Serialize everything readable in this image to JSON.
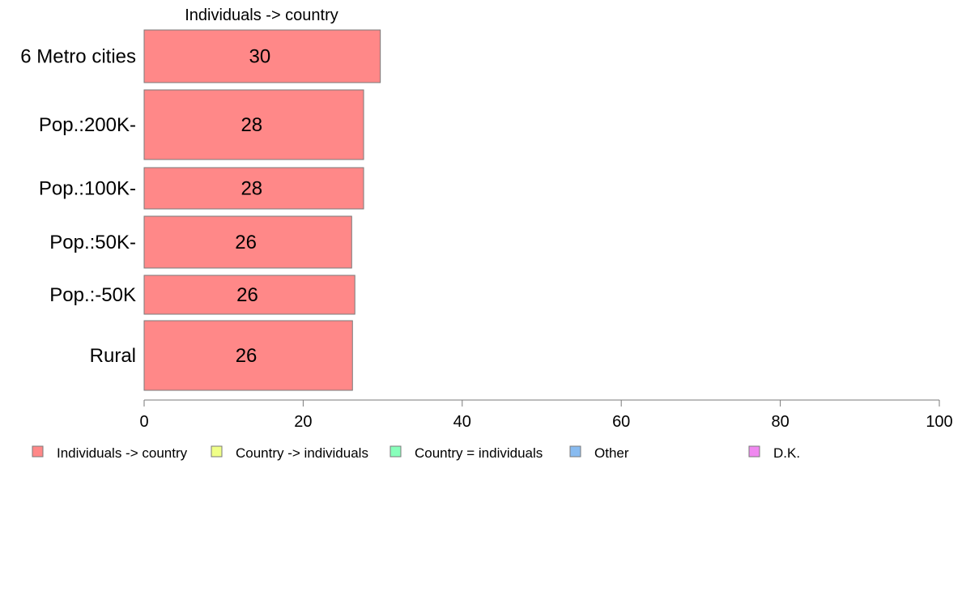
{
  "chart_data": {
    "type": "bar",
    "orientation": "horizontal",
    "title": "Individuals -> country",
    "categories": [
      "6 Metro cities",
      "Pop.:200K-",
      "Pop.:100K-",
      "Pop.:50K-",
      "Pop.:-50K",
      "Rural"
    ],
    "series": [
      {
        "name": "Individuals -> country",
        "color": "#ff8888",
        "values": [
          29.7,
          27.6,
          27.6,
          26.1,
          26.5,
          26.2
        ],
        "labels": [
          "30",
          "28",
          "28",
          "26",
          "26",
          "26"
        ]
      }
    ],
    "xlim": [
      0,
      100
    ],
    "xticks": [
      "0",
      "20",
      "40",
      "60",
      "80",
      "100"
    ],
    "xlabel": "",
    "ylabel": "",
    "grid": false,
    "legend_position": "bottom",
    "legend": [
      {
        "label": "Individuals -> country",
        "color": "#ff8888"
      },
      {
        "label": "Country -> individuals",
        "color": "#f0ff88"
      },
      {
        "label": "Country = individuals",
        "color": "#88ffbb"
      },
      {
        "label": "Other",
        "color": "#88bbf0"
      },
      {
        "label": "D.K.",
        "color": "#f088f0"
      }
    ]
  }
}
